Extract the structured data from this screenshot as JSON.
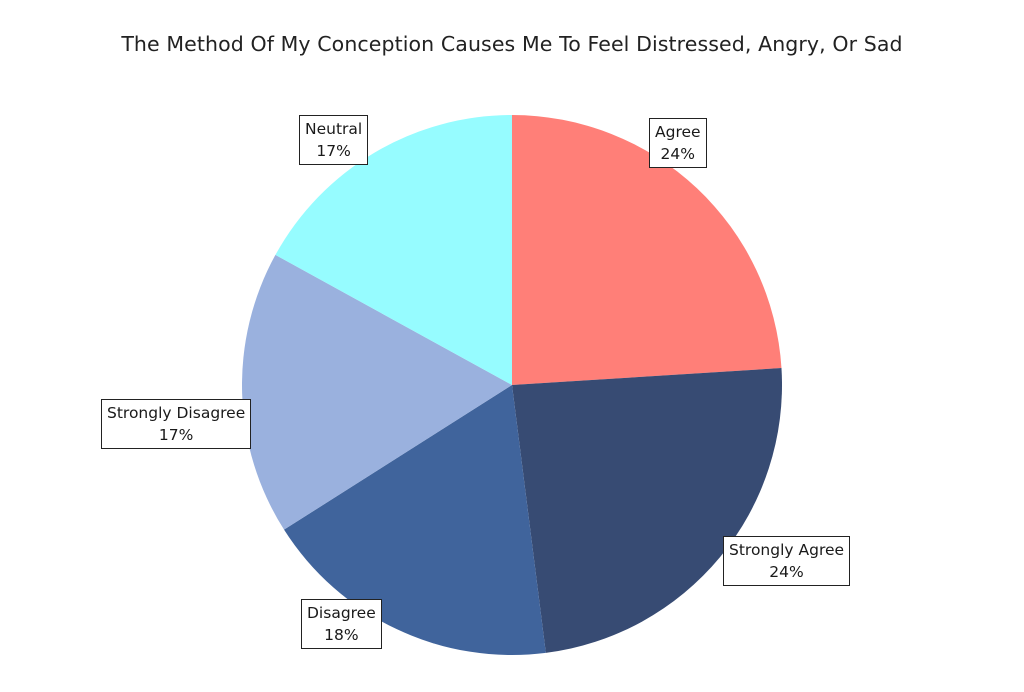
{
  "chart_data": {
    "type": "pie",
    "title": "The Method Of My Conception Causes Me To Feel Distressed, Angry, Or Sad",
    "slices": [
      {
        "label": "Agree",
        "value": 24,
        "value_label": "24%",
        "color": "#FF7F78"
      },
      {
        "label": "Strongly Agree",
        "value": 24,
        "value_label": "24%",
        "color": "#374B73"
      },
      {
        "label": "Disagree",
        "value": 18,
        "value_label": "18%",
        "color": "#40649C"
      },
      {
        "label": "Strongly Disagree",
        "value": 17,
        "value_label": "17%",
        "color": "#9AB1DE"
      },
      {
        "label": "Neutral",
        "value": 17,
        "value_label": "17%",
        "color": "#96FCFF"
      }
    ],
    "start_angle": "12 o'clock",
    "direction": "clockwise",
    "legend": "none"
  }
}
